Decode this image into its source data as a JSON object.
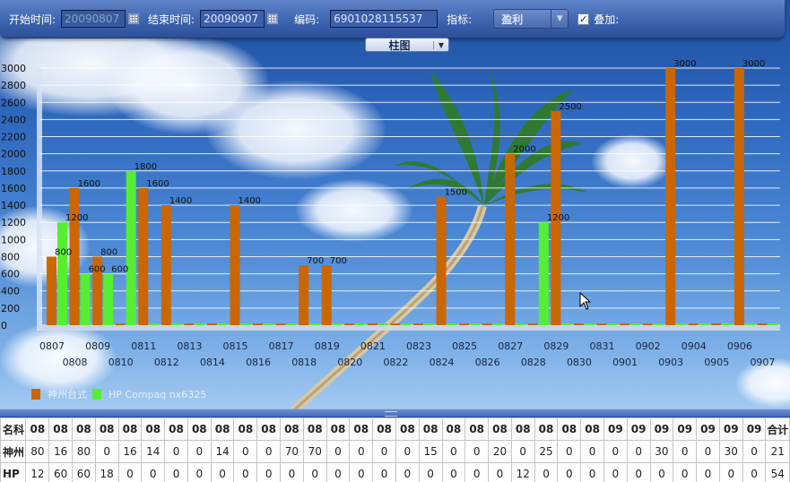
{
  "toolbar": {
    "start_label": "开始时间:",
    "start_value": "20090807",
    "end_label": "结束时间:",
    "end_value": "20090907",
    "code_label": "编码:",
    "code_value": "6901028115537",
    "metric_label": "指标:",
    "metric_value": "盈利",
    "overlay_label": "叠加:",
    "overlay_checked": true
  },
  "chart_type_selector": {
    "value": "柱图"
  },
  "colors": {
    "series1": "#cc6600",
    "series2": "#55ee33",
    "gridline": "#ffffff",
    "toolbar": "#3e65b0"
  },
  "chart_data": {
    "type": "bar",
    "ylim": [
      0,
      3000
    ],
    "yticks": [
      0,
      200,
      400,
      600,
      800,
      1000,
      1200,
      1400,
      1600,
      1800,
      2000,
      2200,
      2400,
      2600,
      2800,
      3000
    ],
    "categories": [
      "0807",
      "0808",
      "0809",
      "0810",
      "0811",
      "0812",
      "0813",
      "0814",
      "0815",
      "0816",
      "0817",
      "0818",
      "0819",
      "0820",
      "0821",
      "0822",
      "0823",
      "0824",
      "0825",
      "0826",
      "0827",
      "0828",
      "0829",
      "0830",
      "0831",
      "0901",
      "0902",
      "0903",
      "0904",
      "0905",
      "0906",
      "0907"
    ],
    "series": [
      {
        "name": "神州台式",
        "values": [
          800,
          1600,
          800,
          0,
          1600,
          1400,
          0,
          0,
          1400,
          0,
          0,
          700,
          700,
          0,
          0,
          0,
          0,
          1500,
          0,
          0,
          2000,
          0,
          2500,
          0,
          0,
          0,
          0,
          3000,
          0,
          0,
          3000,
          0
        ]
      },
      {
        "name": "HP Compaq nx6325",
        "values": [
          1200,
          600,
          600,
          1800,
          0,
          0,
          0,
          0,
          0,
          0,
          0,
          0,
          0,
          0,
          0,
          0,
          0,
          0,
          0,
          0,
          0,
          1200,
          0,
          0,
          0,
          0,
          0,
          0,
          0,
          0,
          0,
          0
        ]
      }
    ],
    "value_labels": [
      {
        "text": "800",
        "series": 0,
        "index": 0
      },
      {
        "text": "1200",
        "series": 1,
        "index": 0
      },
      {
        "text": "1600",
        "series": 0,
        "index": 1
      },
      {
        "text": "600",
        "series": 1,
        "index": 1
      },
      {
        "text": "800",
        "series": 0,
        "index": 2
      },
      {
        "text": "600",
        "series": 1,
        "index": 2
      },
      {
        "text": "1800",
        "series": 1,
        "index": 3
      },
      {
        "text": "1600",
        "series": 0,
        "index": 4
      },
      {
        "text": "1400",
        "series": 0,
        "index": 5
      },
      {
        "text": "1400",
        "series": 0,
        "index": 8
      },
      {
        "text": "700",
        "series": 0,
        "index": 11
      },
      {
        "text": "700",
        "series": 0,
        "index": 12
      },
      {
        "text": "1500",
        "series": 0,
        "index": 17
      },
      {
        "text": "2000",
        "series": 0,
        "index": 20
      },
      {
        "text": "1200",
        "series": 1,
        "index": 21
      },
      {
        "text": "2500",
        "series": 0,
        "index": 22
      },
      {
        "text": "3000",
        "series": 0,
        "index": 27
      },
      {
        "text": "3000",
        "series": 0,
        "index": 30
      }
    ],
    "legend": [
      "神州台式",
      "HP Compaq nx6325"
    ],
    "legend_position": "bottom-left",
    "grid": true
  },
  "table": {
    "header": [
      "名科",
      "08",
      "08",
      "08",
      "08",
      "08",
      "08",
      "08",
      "08",
      "08",
      "08",
      "08",
      "08",
      "08",
      "08",
      "08",
      "08",
      "08",
      "08",
      "08",
      "08",
      "08",
      "08",
      "08",
      "08",
      "08",
      "09",
      "09",
      "09",
      "09",
      "09",
      "09",
      "09",
      "合计"
    ],
    "rows": [
      [
        "神州",
        "80",
        "16",
        "80",
        "0",
        "16",
        "14",
        "0",
        "0",
        "14",
        "0",
        "0",
        "70",
        "70",
        "0",
        "0",
        "0",
        "0",
        "15",
        "0",
        "0",
        "20",
        "0",
        "25",
        "0",
        "0",
        "0",
        "0",
        "30",
        "0",
        "0",
        "30",
        "0",
        "21"
      ],
      [
        "HP",
        "12",
        "60",
        "60",
        "18",
        "0",
        "0",
        "0",
        "0",
        "0",
        "0",
        "0",
        "0",
        "0",
        "0",
        "0",
        "0",
        "0",
        "0",
        "0",
        "0",
        "0",
        "12",
        "0",
        "0",
        "0",
        "0",
        "0",
        "0",
        "0",
        "0",
        "0",
        "0",
        "54"
      ]
    ]
  }
}
